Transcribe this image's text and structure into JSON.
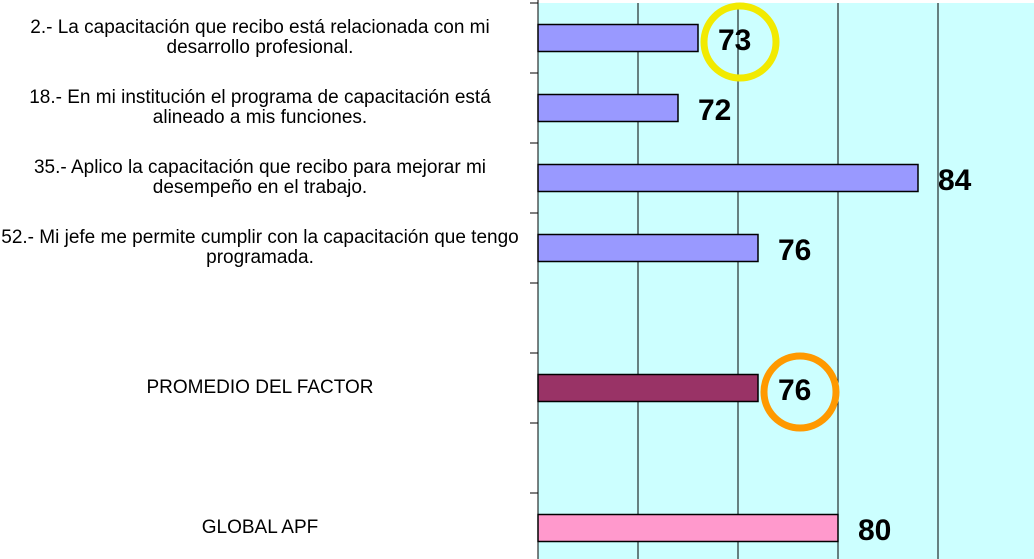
{
  "chart_data": {
    "type": "hbar",
    "categories": [
      "2.- La capacitación que recibo está relacionada con mi desarrollo profesional.",
      "18.- En mi institución el programa de capacitación está alineado a mis funciones.",
      "35.- Aplico la capacitación que recibo para mejorar mi desempeño en el trabajo.",
      "52.- Mi jefe me permite cumplir con la capacitación que tengo programada.",
      null,
      "PROMEDIO DEL FACTOR",
      null,
      "GLOBAL APF"
    ],
    "values": [
      73,
      72,
      84,
      76,
      null,
      76,
      null,
      80
    ],
    "colors": [
      "#9999ff",
      "#9999ff",
      "#9999ff",
      "#9999ff",
      null,
      "#993366",
      null,
      "#ff99cc"
    ],
    "circle_colors": [
      "#f2ea00",
      null,
      null,
      null,
      null,
      "#ff9900",
      null,
      null
    ],
    "xlim": [
      65,
      90
    ],
    "xticks": [
      65,
      70,
      75,
      80,
      85,
      90
    ],
    "grid": true,
    "plot_background": "#ccffff"
  }
}
